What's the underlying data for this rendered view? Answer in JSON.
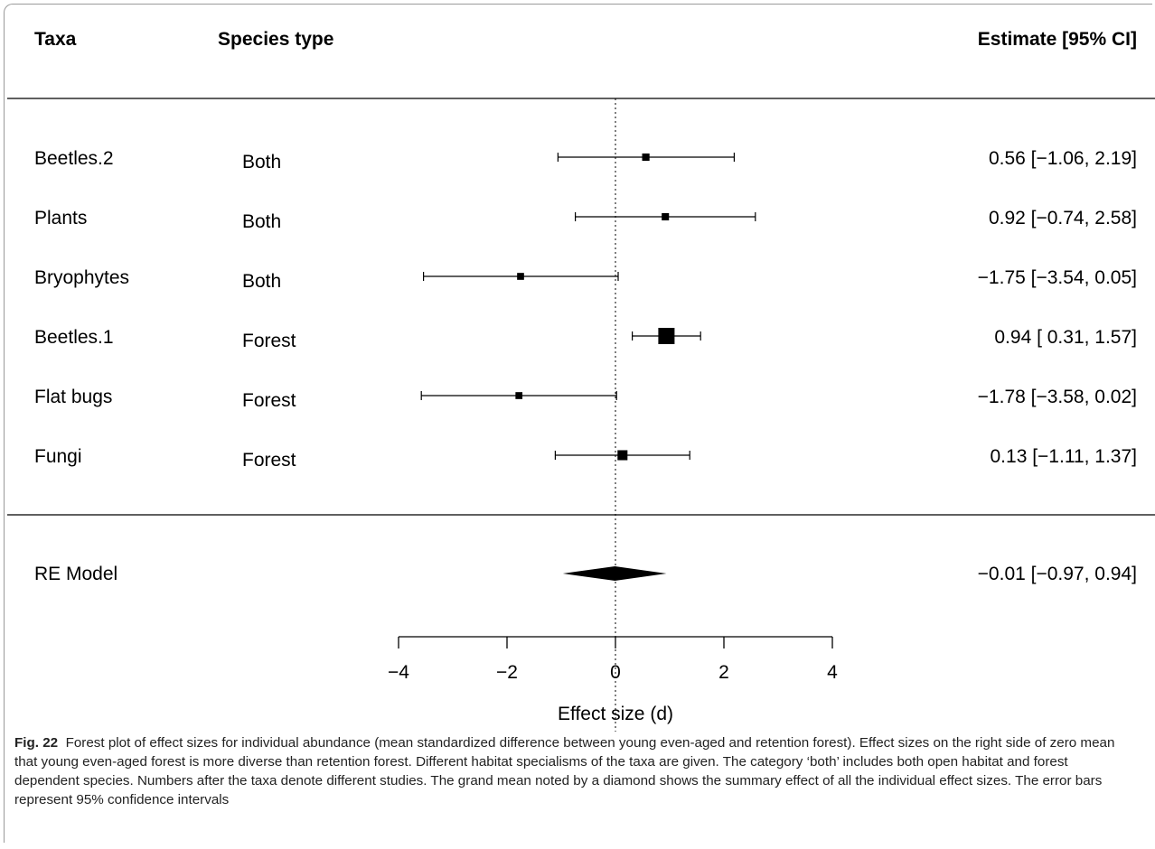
{
  "chart_data": {
    "type": "forest",
    "headers": {
      "taxa": "Taxa",
      "species_type": "Species type",
      "estimate": "Estimate [95% CI]"
    },
    "studies": [
      {
        "taxa": "Beetles.2",
        "species_type": "Both",
        "estimate": 0.56,
        "ci_low": -1.06,
        "ci_high": 2.19,
        "label": "0.56 [−1.06, 2.19]",
        "weight": 0.18
      },
      {
        "taxa": "Plants",
        "species_type": "Both",
        "estimate": 0.92,
        "ci_low": -0.74,
        "ci_high": 2.58,
        "label": "0.92 [−0.74, 2.58]",
        "weight": 0.17
      },
      {
        "taxa": "Bryophytes",
        "species_type": "Both",
        "estimate": -1.75,
        "ci_low": -3.54,
        "ci_high": 0.05,
        "label": "−1.75 [−3.54, 0.05]",
        "weight": 0.14
      },
      {
        "taxa": "Beetles.1",
        "species_type": "Forest",
        "estimate": 0.94,
        "ci_low": 0.31,
        "ci_high": 1.57,
        "label": "0.94 [ 0.31, 1.57]",
        "weight": 1.0
      },
      {
        "taxa": "Flat bugs",
        "species_type": "Forest",
        "estimate": -1.78,
        "ci_low": -3.58,
        "ci_high": 0.02,
        "label": "−1.78 [−3.58, 0.02]",
        "weight": 0.14
      },
      {
        "taxa": "Fungi",
        "species_type": "Forest",
        "estimate": 0.13,
        "ci_low": -1.11,
        "ci_high": 1.37,
        "label": "0.13 [−1.11, 1.37]",
        "weight": 0.42
      }
    ],
    "summary": {
      "label": "RE Model",
      "estimate": -0.01,
      "ci_low": -0.97,
      "ci_high": 0.94,
      "text": "−0.01 [−0.97, 0.94]"
    },
    "x_axis": {
      "label": "Effect size (d)",
      "ticks": [
        -4,
        -2,
        0,
        2,
        4
      ],
      "tick_labels": [
        "−4",
        "−2",
        "0",
        "2",
        "4"
      ],
      "range": [
        -4,
        4
      ]
    },
    "reference_line": 0
  },
  "caption": {
    "figure_label": "Fig. 22",
    "text": "Forest plot of effect sizes for individual abundance (mean standardized difference between young even-aged and retention forest). Effect sizes on the right side of zero mean that young even-aged forest is more diverse than retention forest. Different habitat specialisms of the taxa are given. The category ‘both’ includes both open habitat and forest dependent species. Numbers after the taxa denote different studies. The grand mean noted by a diamond shows the summary effect of all the individual effect sizes. The error bars represent 95% confidence intervals"
  }
}
